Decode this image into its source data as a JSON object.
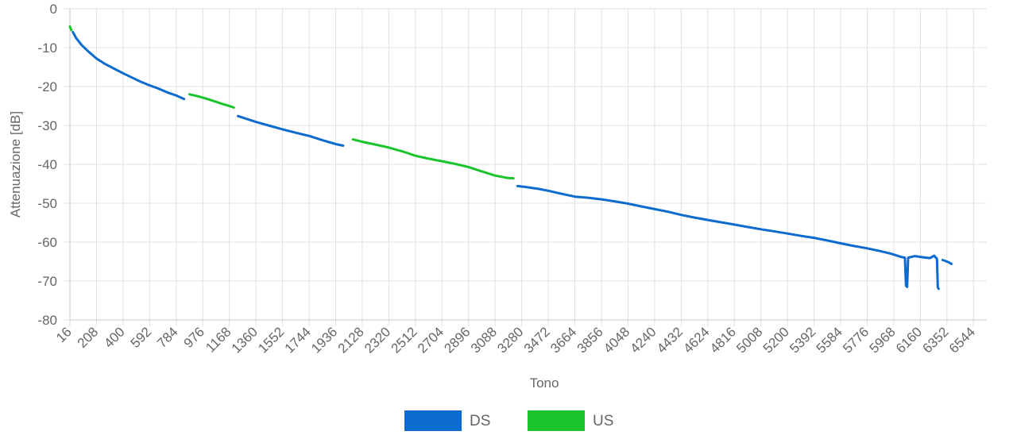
{
  "chart_data": {
    "type": "line",
    "xlabel": "Tono",
    "ylabel": "Attenuazione [dB]",
    "xlim": [
      16,
      6640
    ],
    "ylim": [
      -80,
      0
    ],
    "y_ticks": [
      0,
      -10,
      -20,
      -30,
      -40,
      -50,
      -60,
      -70,
      -80
    ],
    "x_ticks": [
      16,
      208,
      400,
      592,
      784,
      976,
      1168,
      1360,
      1552,
      1744,
      1936,
      2128,
      2320,
      2512,
      2704,
      2896,
      3088,
      3280,
      3472,
      3664,
      3856,
      4048,
      4240,
      4432,
      4624,
      4816,
      5008,
      5200,
      5392,
      5584,
      5776,
      5968,
      6160,
      6352,
      6544
    ],
    "grid": true,
    "legend_position": "bottom",
    "series": [
      {
        "name": "DS",
        "color": "#0c6bcf",
        "segments": [
          [
            [
              38,
              -6.0
            ],
            [
              60,
              -7.5
            ],
            [
              100,
              -9.3
            ],
            [
              150,
              -11.0
            ],
            [
              208,
              -12.8
            ],
            [
              270,
              -14.2
            ],
            [
              330,
              -15.3
            ],
            [
              400,
              -16.6
            ],
            [
              470,
              -17.8
            ],
            [
              530,
              -18.8
            ],
            [
              592,
              -19.7
            ],
            [
              660,
              -20.6
            ],
            [
              720,
              -21.5
            ],
            [
              784,
              -22.3
            ],
            [
              840,
              -23.2
            ]
          ],
          [
            [
              1230,
              -27.6
            ],
            [
              1300,
              -28.4
            ],
            [
              1360,
              -29.1
            ],
            [
              1450,
              -30.0
            ],
            [
              1552,
              -31.0
            ],
            [
              1650,
              -31.9
            ],
            [
              1744,
              -32.7
            ],
            [
              1840,
              -33.8
            ],
            [
              1936,
              -34.8
            ],
            [
              1990,
              -35.2
            ]
          ],
          [
            [
              3250,
              -45.6
            ],
            [
              3300,
              -45.8
            ],
            [
              3400,
              -46.3
            ],
            [
              3472,
              -46.8
            ],
            [
              3560,
              -47.5
            ],
            [
              3664,
              -48.3
            ],
            [
              3760,
              -48.6
            ],
            [
              3856,
              -49.0
            ],
            [
              3950,
              -49.5
            ],
            [
              4048,
              -50.1
            ],
            [
              4140,
              -50.8
            ],
            [
              4240,
              -51.5
            ],
            [
              4340,
              -52.2
            ],
            [
              4432,
              -53.0
            ],
            [
              4530,
              -53.7
            ],
            [
              4624,
              -54.3
            ],
            [
              4720,
              -54.9
            ],
            [
              4816,
              -55.5
            ],
            [
              4910,
              -56.1
            ],
            [
              5008,
              -56.7
            ],
            [
              5100,
              -57.2
            ],
            [
              5200,
              -57.8
            ],
            [
              5300,
              -58.4
            ],
            [
              5392,
              -58.9
            ],
            [
              5490,
              -59.6
            ],
            [
              5584,
              -60.3
            ],
            [
              5680,
              -61.0
            ],
            [
              5776,
              -61.6
            ],
            [
              5870,
              -62.3
            ],
            [
              5950,
              -63.0
            ],
            [
              6020,
              -63.8
            ],
            [
              6048,
              -64.0
            ],
            [
              6056,
              -71.2
            ],
            [
              6064,
              -71.5
            ],
            [
              6072,
              -64.0
            ],
            [
              6120,
              -63.6
            ],
            [
              6180,
              -63.9
            ],
            [
              6230,
              -64.1
            ],
            [
              6260,
              -63.5
            ],
            [
              6280,
              -64.3
            ],
            [
              6286,
              -71.6
            ],
            [
              6292,
              -72.0
            ]
          ],
          [
            [
              6320,
              -64.6
            ],
            [
              6360,
              -65.1
            ],
            [
              6385,
              -65.6
            ]
          ]
        ]
      },
      {
        "name": "US",
        "color": "#19c42c",
        "segments": [
          [
            [
              16,
              -4.6
            ],
            [
              26,
              -5.5
            ]
          ],
          [
            [
              880,
              -22.0
            ],
            [
              950,
              -22.6
            ],
            [
              1000,
              -23.1
            ],
            [
              1060,
              -23.8
            ],
            [
              1120,
              -24.5
            ],
            [
              1168,
              -25.0
            ],
            [
              1200,
              -25.4
            ]
          ],
          [
            [
              2060,
              -33.6
            ],
            [
              2128,
              -34.2
            ],
            [
              2220,
              -34.9
            ],
            [
              2320,
              -35.7
            ],
            [
              2420,
              -36.7
            ],
            [
              2512,
              -37.8
            ],
            [
              2600,
              -38.5
            ],
            [
              2704,
              -39.2
            ],
            [
              2800,
              -39.9
            ],
            [
              2896,
              -40.7
            ],
            [
              2990,
              -41.8
            ],
            [
              3088,
              -42.9
            ],
            [
              3180,
              -43.5
            ],
            [
              3220,
              -43.6
            ]
          ]
        ]
      }
    ]
  }
}
